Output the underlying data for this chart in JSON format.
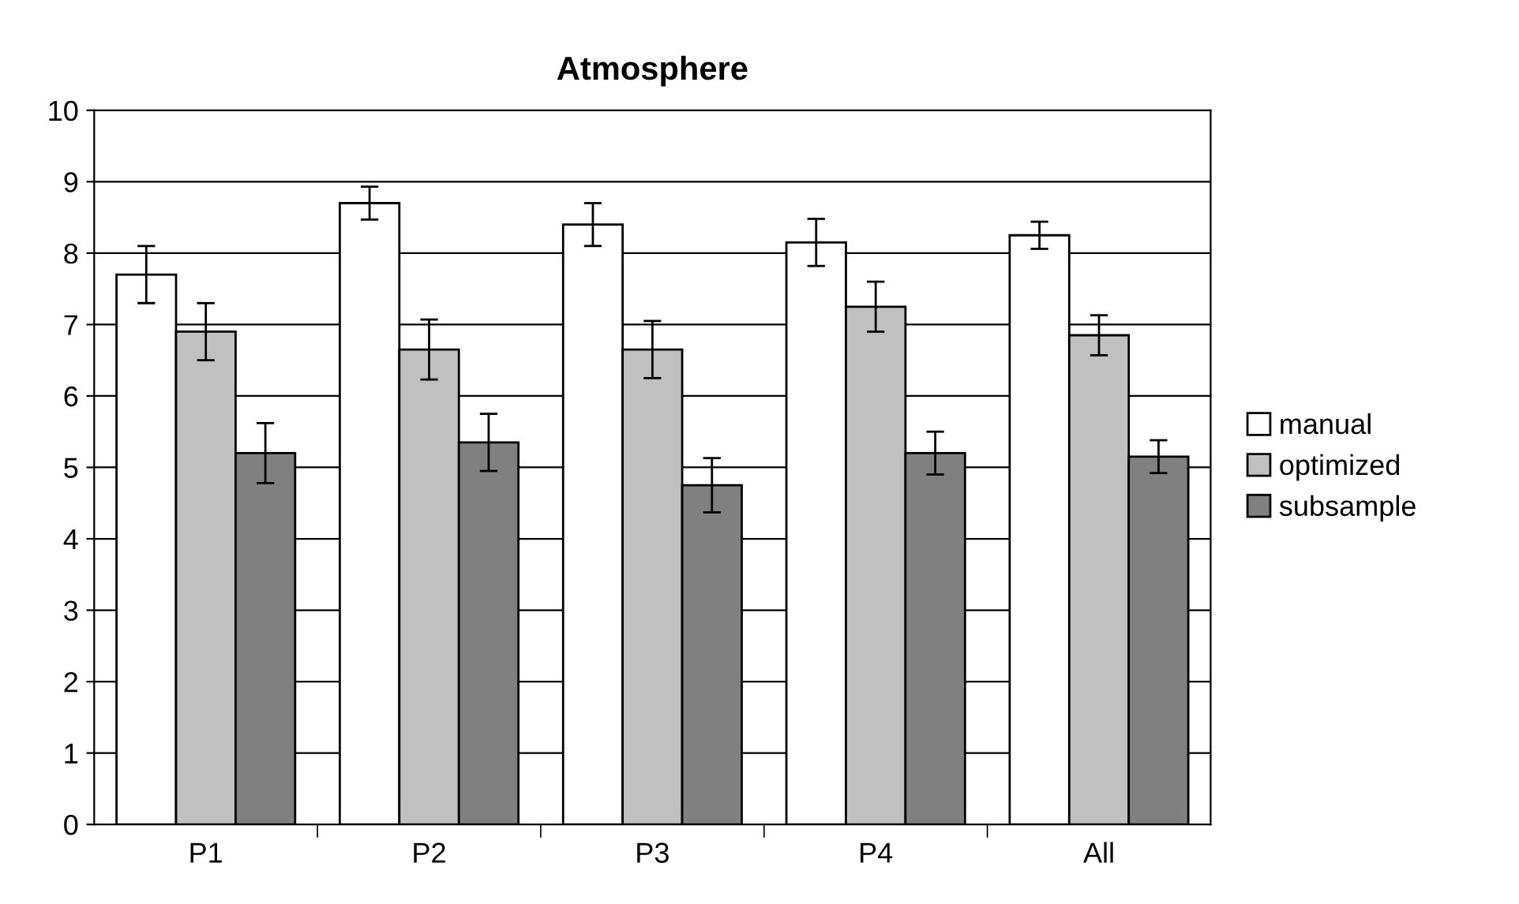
{
  "chart_data": {
    "type": "bar",
    "title": "Atmosphere",
    "categories": [
      "P1",
      "P2",
      "P3",
      "P4",
      "All"
    ],
    "series": [
      {
        "name": "manual",
        "color": "#ffffff",
        "values": [
          7.7,
          8.7,
          8.4,
          8.15,
          8.25
        ],
        "errors": [
          0.4,
          0.23,
          0.3,
          0.33,
          0.19
        ]
      },
      {
        "name": "optimized",
        "color": "#c0c0c0",
        "values": [
          6.9,
          6.65,
          6.65,
          7.25,
          6.85
        ],
        "errors": [
          0.4,
          0.42,
          0.4,
          0.35,
          0.28
        ]
      },
      {
        "name": "subsample",
        "color": "#808080",
        "values": [
          5.2,
          5.35,
          4.75,
          5.2,
          5.15
        ],
        "errors": [
          0.42,
          0.4,
          0.38,
          0.3,
          0.23
        ]
      }
    ],
    "ylim": [
      0,
      10
    ],
    "yticks": [
      0,
      1,
      2,
      3,
      4,
      5,
      6,
      7,
      8,
      9,
      10
    ],
    "grid": "y",
    "legend": "right"
  }
}
